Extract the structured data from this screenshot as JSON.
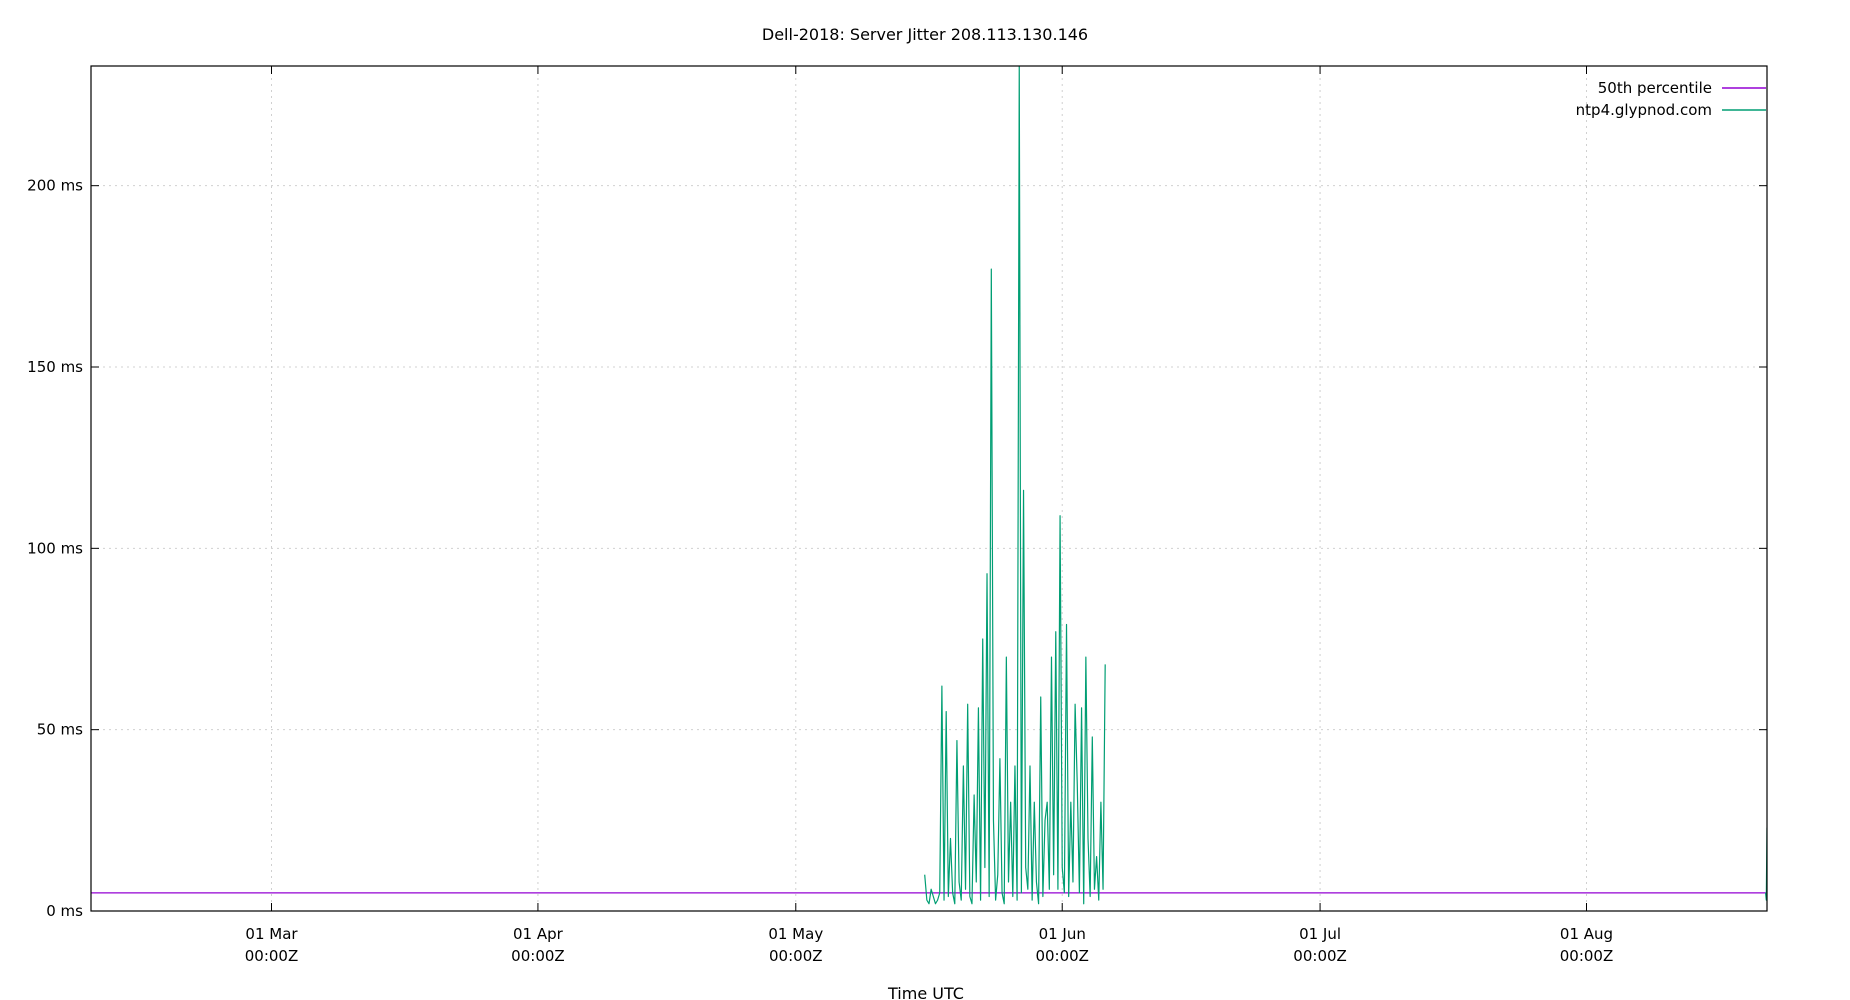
{
  "chart_data": {
    "type": "line",
    "title": "Dell-2018: Server Jitter 208.113.130.146",
    "xlabel": "Time UTC",
    "ylabel": "",
    "x_type": "date",
    "xlim": [
      "2018-02-08",
      "2018-08-22"
    ],
    "ylim": [
      0,
      233
    ],
    "y_unit": "ms",
    "grid": true,
    "legend_position": "top-right",
    "x_ticks": [
      {
        "value": "2018-03-01",
        "label_line1": "01 Mar",
        "label_line2": "00:00Z"
      },
      {
        "value": "2018-04-01",
        "label_line1": "01 Apr",
        "label_line2": "00:00Z"
      },
      {
        "value": "2018-05-01",
        "label_line1": "01 May",
        "label_line2": "00:00Z"
      },
      {
        "value": "2018-06-01",
        "label_line1": "01 Jun",
        "label_line2": "00:00Z"
      },
      {
        "value": "2018-07-01",
        "label_line1": "01 Jul",
        "label_line2": "00:00Z"
      },
      {
        "value": "2018-08-01",
        "label_line1": "01 Aug",
        "label_line2": "00:00Z"
      }
    ],
    "y_ticks": [
      {
        "value": 0,
        "label": "0 ms"
      },
      {
        "value": 50,
        "label": "50 ms"
      },
      {
        "value": 100,
        "label": "100 ms"
      },
      {
        "value": 150,
        "label": "150 ms"
      },
      {
        "value": 200,
        "label": "200 ms"
      }
    ],
    "series": [
      {
        "name": "50th percentile",
        "color": "#9400d3",
        "x": [
          "2018-02-08",
          "2018-08-22"
        ],
        "y": [
          5,
          5
        ]
      },
      {
        "name": "ntp4.glypnod.com",
        "color": "#009e73",
        "x": [
          "2018-05-16 00:00",
          "2018-05-16 06:00",
          "2018-05-16 12:00",
          "2018-05-16 18:00",
          "2018-05-17 00:00",
          "2018-05-17 06:00",
          "2018-05-17 12:00",
          "2018-05-17 18:00",
          "2018-05-18 00:00",
          "2018-05-18 06:00",
          "2018-05-18 12:00",
          "2018-05-18 18:00",
          "2018-05-19 00:00",
          "2018-05-19 06:00",
          "2018-05-19 12:00",
          "2018-05-19 18:00",
          "2018-05-20 00:00",
          "2018-05-20 06:00",
          "2018-05-20 12:00",
          "2018-05-20 18:00",
          "2018-05-21 00:00",
          "2018-05-21 06:00",
          "2018-05-21 12:00",
          "2018-05-21 18:00",
          "2018-05-22 00:00",
          "2018-05-22 06:00",
          "2018-05-22 12:00",
          "2018-05-22 18:00",
          "2018-05-23 00:00",
          "2018-05-23 06:00",
          "2018-05-23 12:00",
          "2018-05-23 18:00",
          "2018-05-24 00:00",
          "2018-05-24 06:00",
          "2018-05-24 12:00",
          "2018-05-24 18:00",
          "2018-05-25 00:00",
          "2018-05-25 06:00",
          "2018-05-25 12:00",
          "2018-05-25 18:00",
          "2018-05-26 00:00",
          "2018-05-26 06:00",
          "2018-05-26 12:00",
          "2018-05-26 18:00",
          "2018-05-27 00:00",
          "2018-05-27 06:00",
          "2018-05-27 12:00",
          "2018-05-27 18:00",
          "2018-05-28 00:00",
          "2018-05-28 06:00",
          "2018-05-28 12:00",
          "2018-05-28 18:00",
          "2018-05-29 00:00",
          "2018-05-29 06:00",
          "2018-05-29 12:00",
          "2018-05-29 18:00",
          "2018-05-30 00:00",
          "2018-05-30 06:00",
          "2018-05-30 12:00",
          "2018-05-30 18:00",
          "2018-05-31 00:00",
          "2018-05-31 06:00",
          "2018-05-31 12:00",
          "2018-05-31 18:00",
          "2018-06-01 00:00",
          "2018-06-01 06:00",
          "2018-06-01 12:00",
          "2018-06-01 18:00",
          "2018-06-02 00:00",
          "2018-06-02 06:00",
          "2018-06-02 12:00",
          "2018-06-02 18:00",
          "2018-06-03 00:00",
          "2018-06-03 06:00",
          "2018-06-03 12:00",
          "2018-06-03 18:00",
          "2018-06-04 00:00",
          "2018-06-04 06:00",
          "2018-06-04 12:00",
          "2018-06-04 18:00",
          "2018-06-05 00:00",
          "2018-06-05 06:00",
          "2018-06-05 12:00",
          "2018-06-05 18:00",
          "2018-06-06 00:00",
          "2018-08-21 20:00",
          "2018-08-21 22:00",
          "2018-08-22 00:00"
        ],
        "y": [
          10,
          3,
          2,
          6,
          4,
          2,
          3,
          5,
          62,
          3,
          55,
          4,
          20,
          5,
          2,
          47,
          8,
          3,
          40,
          6,
          57,
          4,
          2,
          32,
          8,
          56,
          3,
          75,
          12,
          93,
          4,
          177,
          25,
          3,
          10,
          42,
          5,
          2,
          70,
          8,
          30,
          4,
          40,
          3,
          233,
          5,
          116,
          12,
          6,
          40,
          3,
          30,
          8,
          2,
          59,
          4,
          25,
          30,
          6,
          70,
          10,
          77,
          6,
          109,
          12,
          5,
          79,
          4,
          30,
          8,
          57,
          35,
          5,
          56,
          2,
          70,
          20,
          4,
          48,
          6,
          15,
          3,
          30,
          6,
          68,
          5,
          3,
          23
        ]
      }
    ]
  }
}
